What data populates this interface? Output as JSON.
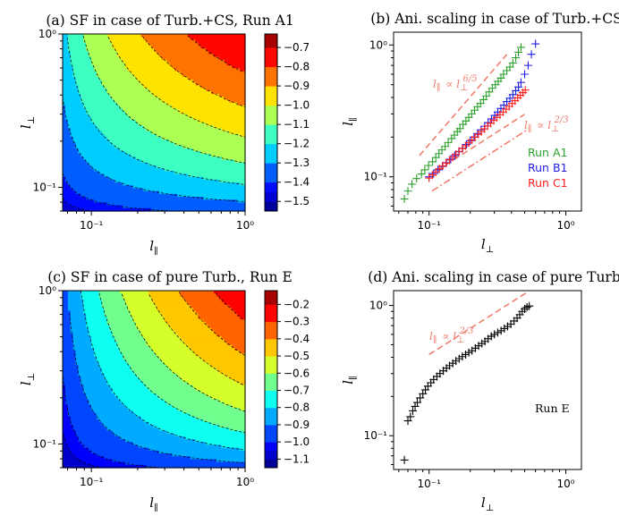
{
  "chart_data": [
    {
      "id": "a",
      "type": "heatmap",
      "title": "(a) SF in case of Turb.+CS, Run A1",
      "xlabel": "l",
      "xlabel_sub": "∥",
      "ylabel": "l",
      "ylabel_sub": "⊥",
      "xlim": [
        0.065,
        1.0
      ],
      "ylim": [
        0.07,
        1.0
      ],
      "scale": "log",
      "colorbar": {
        "range": [
          -1.55,
          -0.63
        ],
        "ticks": [
          "−0.7",
          "−0.8",
          "−0.9",
          "−1.0",
          "−1.1",
          "−1.2",
          "−1.3",
          "−1.4",
          "−1.5"
        ],
        "tick_values": [
          -0.7,
          -0.8,
          -0.9,
          -1.0,
          -1.1,
          -1.2,
          -1.3,
          -1.4,
          -1.5
        ],
        "levels": [
          -1.55,
          -1.5,
          -1.45,
          -1.4,
          -1.3,
          -1.2,
          -1.1,
          -1.0,
          -0.9,
          -0.8,
          -0.7,
          -0.63
        ]
      },
      "field": {
        "offset": 0.05,
        "exp_par": 0.35,
        "exp_perp": 0.55
      },
      "xticks": [
        "10⁻¹",
        "10⁰"
      ],
      "yticks": [
        "10⁻¹",
        "10⁰"
      ]
    },
    {
      "id": "b",
      "type": "scatter",
      "title": "(b) Ani. scaling in case of Turb.+CS",
      "xlabel": "l",
      "xlabel_sub": "⊥",
      "ylabel": "l",
      "ylabel_sub": "∥",
      "xlim": [
        0.055,
        1.3
      ],
      "ylim": [
        0.055,
        1.25
      ],
      "scale": "log",
      "xticks": [
        "10⁻¹",
        "10⁰"
      ],
      "yticks": [
        "10⁻¹",
        "10⁰"
      ],
      "series": [
        {
          "name": "Run A1",
          "color": "#2ca02c",
          "x": [
            0.066,
            0.07,
            0.075,
            0.081,
            0.088,
            0.093,
            0.099,
            0.106,
            0.112,
            0.118,
            0.124,
            0.131,
            0.138,
            0.146,
            0.153,
            0.161,
            0.168,
            0.177,
            0.186,
            0.195,
            0.205,
            0.215,
            0.226,
            0.238,
            0.25,
            0.262,
            0.275,
            0.29,
            0.305,
            0.32,
            0.335,
            0.35,
            0.37,
            0.39,
            0.41,
            0.43,
            0.45,
            0.47
          ],
          "y": [
            0.068,
            0.078,
            0.088,
            0.097,
            0.105,
            0.113,
            0.122,
            0.13,
            0.14,
            0.15,
            0.16,
            0.17,
            0.182,
            0.195,
            0.207,
            0.22,
            0.232,
            0.25,
            0.265,
            0.282,
            0.3,
            0.32,
            0.34,
            0.36,
            0.385,
            0.41,
            0.44,
            0.47,
            0.5,
            0.53,
            0.56,
            0.6,
            0.64,
            0.68,
            0.73,
            0.8,
            0.88,
            0.96
          ]
        },
        {
          "name": "Run B1",
          "color": "#1f1fe8",
          "x": [
            0.1,
            0.108,
            0.116,
            0.125,
            0.134,
            0.144,
            0.154,
            0.165,
            0.176,
            0.188,
            0.2,
            0.213,
            0.226,
            0.24,
            0.255,
            0.27,
            0.286,
            0.302,
            0.318,
            0.335,
            0.352,
            0.37,
            0.39,
            0.41,
            0.43,
            0.45,
            0.47,
            0.5,
            0.53,
            0.56,
            0.6
          ],
          "y": [
            0.1,
            0.106,
            0.113,
            0.12,
            0.128,
            0.136,
            0.145,
            0.155,
            0.165,
            0.176,
            0.188,
            0.2,
            0.213,
            0.227,
            0.242,
            0.258,
            0.275,
            0.292,
            0.31,
            0.33,
            0.35,
            0.372,
            0.395,
            0.42,
            0.45,
            0.48,
            0.52,
            0.6,
            0.7,
            0.85,
            1.02
          ]
        },
        {
          "name": "Run C1",
          "color": "#ff2020",
          "x": [
            0.1,
            0.106,
            0.112,
            0.119,
            0.126,
            0.133,
            0.141,
            0.149,
            0.157,
            0.166,
            0.175,
            0.185,
            0.195,
            0.206,
            0.217,
            0.229,
            0.241,
            0.254,
            0.268,
            0.282,
            0.297,
            0.313,
            0.33,
            0.348,
            0.366,
            0.385,
            0.405,
            0.425,
            0.445,
            0.465,
            0.485,
            0.505
          ],
          "y": [
            0.098,
            0.103,
            0.109,
            0.115,
            0.121,
            0.127,
            0.134,
            0.141,
            0.148,
            0.156,
            0.164,
            0.172,
            0.181,
            0.19,
            0.2,
            0.21,
            0.22,
            0.231,
            0.243,
            0.255,
            0.268,
            0.282,
            0.296,
            0.31,
            0.326,
            0.342,
            0.36,
            0.378,
            0.397,
            0.415,
            0.435,
            0.455
          ]
        }
      ],
      "guides": [
        {
          "style": "dashed",
          "exponent": 1.2,
          "x": [
            0.085,
            0.37
          ],
          "y0": 0.145,
          "label": "l",
          "label_sub": "∥",
          "label_rel": "∝ l",
          "label_sub2": "⊥",
          "label_sup": "6/5"
        },
        {
          "style": "dashed",
          "exponent": 0.6667,
          "x": [
            0.1,
            0.5
          ],
          "y0": 0.102,
          "label": "l",
          "label_sub": "∥",
          "label_rel": "∝ l",
          "label_sub2": "⊥",
          "label_sup": "2/3"
        },
        {
          "style": "dashdot",
          "exponent": 0.6667,
          "x": [
            0.105,
            0.52
          ],
          "y0": 0.078
        }
      ],
      "legend": {
        "location": "right",
        "entries": [
          "Run A1",
          "Run B1",
          "Run C1"
        ]
      }
    },
    {
      "id": "c",
      "type": "heatmap",
      "title": "(c) SF in case of pure Turb., Run E",
      "xlabel": "l",
      "xlabel_sub": "∥",
      "ylabel": "l",
      "ylabel_sub": "⊥",
      "xlim": [
        0.065,
        1.0
      ],
      "ylim": [
        0.07,
        1.0
      ],
      "scale": "log",
      "colorbar": {
        "range": [
          -1.15,
          -0.12
        ],
        "ticks": [
          "−0.2",
          "−0.3",
          "−0.4",
          "−0.5",
          "−0.6",
          "−0.7",
          "−0.8",
          "−0.9",
          "−1.0",
          "−1.1"
        ],
        "tick_values": [
          -0.2,
          -0.3,
          -0.4,
          -0.5,
          -0.6,
          -0.7,
          -0.8,
          -0.9,
          -1.0,
          -1.1
        ],
        "levels": [
          -1.15,
          -1.1,
          -1.05,
          -1.0,
          -0.9,
          -0.8,
          -0.7,
          -0.6,
          -0.5,
          -0.4,
          -0.3,
          -0.2,
          -0.12
        ]
      },
      "field": {
        "offset": 0.04,
        "exp_par": 0.5,
        "exp_perp": 0.5
      },
      "xticks": [
        "10⁻¹",
        "10⁰"
      ],
      "yticks": [
        "10⁻¹",
        "10⁰"
      ]
    },
    {
      "id": "d",
      "type": "scatter",
      "title": "(d) Ani. scaling in case of pure Turb.",
      "xlabel": "l",
      "xlabel_sub": "⊥",
      "ylabel": "l",
      "ylabel_sub": "∥",
      "xlim": [
        0.055,
        1.3
      ],
      "ylim": [
        0.055,
        1.3
      ],
      "scale": "log",
      "xticks": [
        "10⁻¹",
        "10⁰"
      ],
      "yticks": [
        "10⁻¹",
        "10⁰"
      ],
      "series": [
        {
          "name": "Run E",
          "color": "#000000",
          "x": [
            0.066,
            0.07,
            0.073,
            0.076,
            0.079,
            0.082,
            0.086,
            0.09,
            0.094,
            0.098,
            0.103,
            0.108,
            0.114,
            0.12,
            0.127,
            0.134,
            0.141,
            0.149,
            0.157,
            0.166,
            0.175,
            0.185,
            0.195,
            0.206,
            0.218,
            0.23,
            0.243,
            0.256,
            0.27,
            0.285,
            0.3,
            0.318,
            0.336,
            0.355,
            0.375,
            0.396,
            0.418,
            0.44,
            0.46,
            0.48,
            0.5,
            0.52,
            0.54
          ],
          "y": [
            0.065,
            0.13,
            0.14,
            0.155,
            0.168,
            0.18,
            0.195,
            0.21,
            0.225,
            0.24,
            0.255,
            0.27,
            0.285,
            0.3,
            0.315,
            0.33,
            0.345,
            0.36,
            0.375,
            0.39,
            0.405,
            0.42,
            0.435,
            0.45,
            0.47,
            0.49,
            0.51,
            0.53,
            0.555,
            0.58,
            0.6,
            0.62,
            0.64,
            0.665,
            0.69,
            0.72,
            0.76,
            0.8,
            0.85,
            0.9,
            0.94,
            0.97,
            0.99
          ]
        }
      ],
      "guides": [
        {
          "style": "dashed",
          "exponent": 0.6667,
          "x": [
            0.1,
            0.52
          ],
          "y0": 0.42,
          "label": "l",
          "label_sub": "∥",
          "label_rel": "∝ l",
          "label_sub2": "⊥",
          "label_sup": "2/3"
        }
      ],
      "annotation": "Run E"
    }
  ]
}
